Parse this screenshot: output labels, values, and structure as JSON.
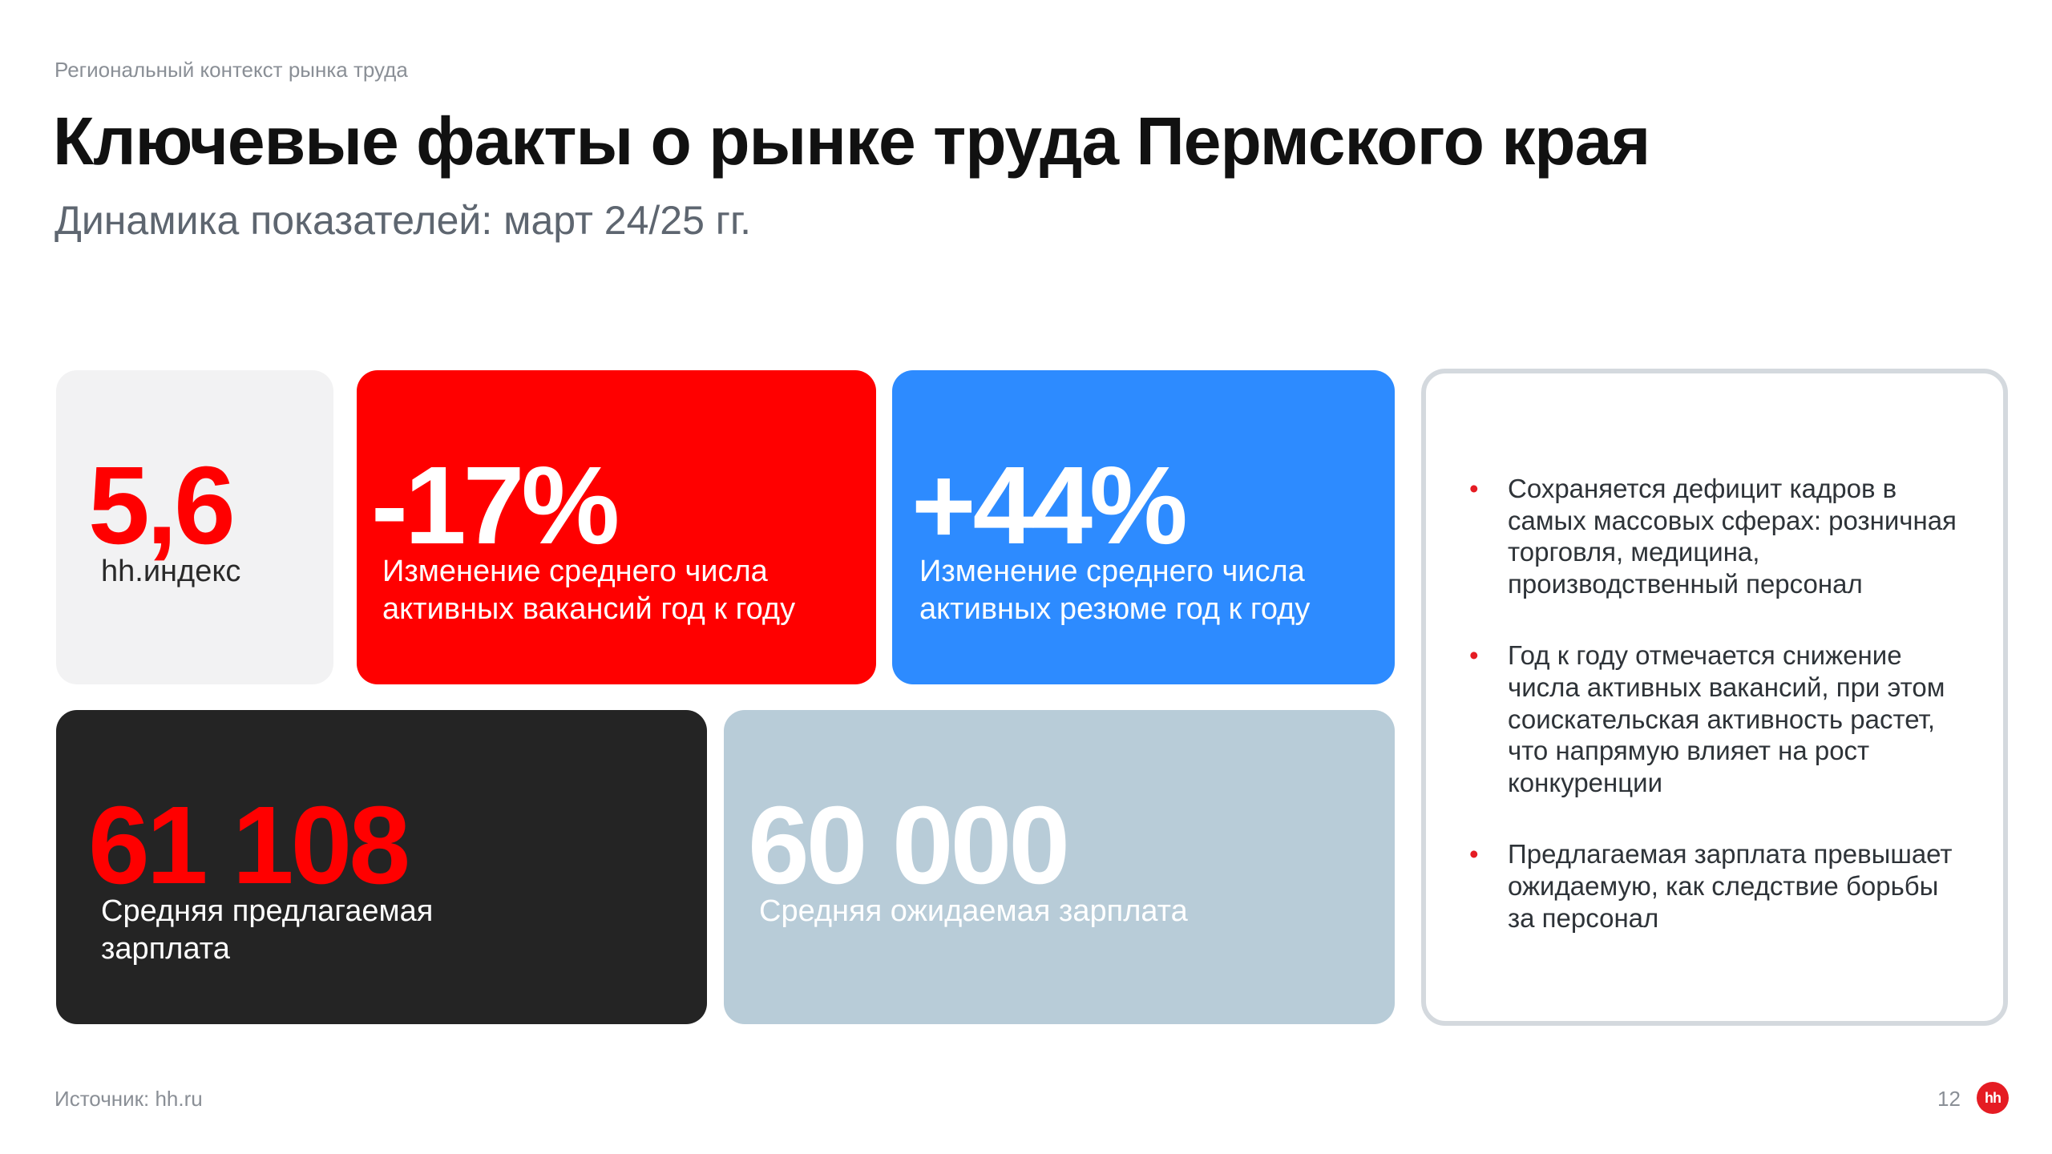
{
  "header": {
    "breadcrumb": "Региональный контекст рынка труда",
    "title": "Ключевые факты о рынке труда Пермского края",
    "subtitle": "Динамика показателей: март 24/25 гг."
  },
  "cards": {
    "index": {
      "value": "5,6",
      "label": "hh.индекс"
    },
    "vacancies": {
      "value": "-17%",
      "label": "Изменение среднего числа активных вакансий год к году"
    },
    "resumes": {
      "value": "+44%",
      "label": "Изменение среднего числа активных резюме год к году"
    },
    "offered_salary": {
      "value": "61 108",
      "label": "Средняя предлагаемая зарплата"
    },
    "expected_salary": {
      "value": "60 000",
      "label": "Средняя ожидаемая зарплата"
    }
  },
  "notes": {
    "bullet": "•",
    "items": [
      "Сохраняется дефицит кадров в самых массовых сферах: розничная торговля, медицина, производственный персонал",
      "Год к году отмечается снижение числа активных вакансий, при этом соискательская активность растет, что напрямую влияет на рост конкуренции",
      "Предлагаемая зарплата превышает ожидаемую, как следствие борьбы за персонал"
    ]
  },
  "footer": {
    "source": "Источник: hh.ru",
    "page_number": "12",
    "logo_text": "hh"
  },
  "colors": {
    "accent_red": "#ff0000",
    "accent_blue": "#2d8bff",
    "dark": "#242424",
    "light_blue_gray": "#b8ccd8",
    "light_gray": "#f2f2f3"
  }
}
